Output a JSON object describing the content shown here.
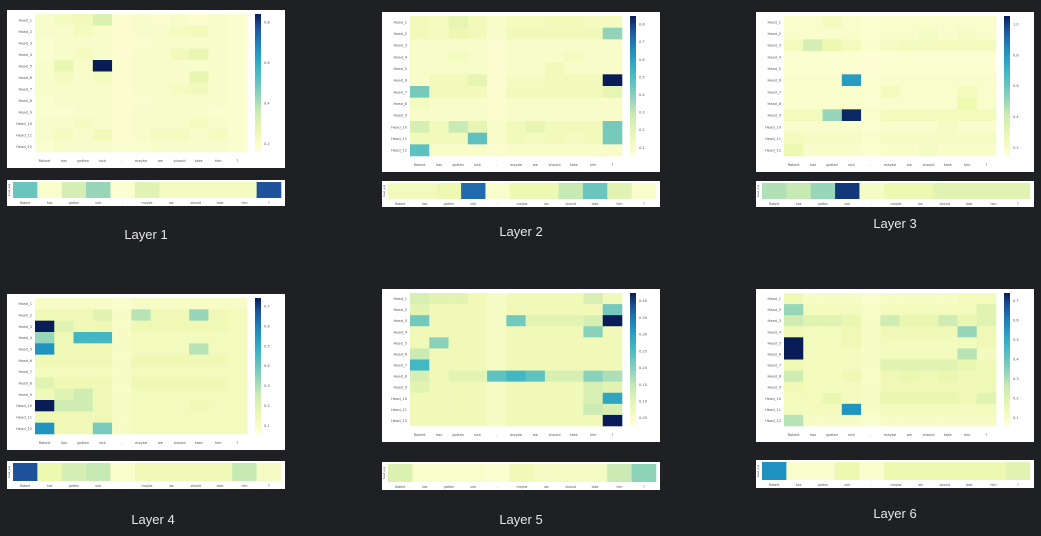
{
  "tokens": [
    "Robert",
    "has",
    "gotten",
    "sick",
    ".",
    "maybe",
    "we",
    "should",
    "take",
    "him",
    "?"
  ],
  "heads": [
    "Head_1",
    "Head_2",
    "Head_3",
    "Head_4",
    "Head_5",
    "Head_6",
    "Head_7",
    "Head_8",
    "Head_9",
    "Head_10",
    "Head_11",
    "Head_12"
  ],
  "strip_label": "head_avg",
  "colors": {
    "low": "#ffffd9",
    "mid1": "#edf8b1",
    "mid2": "#c7e9b4",
    "mid3": "#7fcdbb",
    "mid4": "#41b6c4",
    "mid5": "#1d91c0",
    "high": "#081d58",
    "background": "#1f2023",
    "caption": "#e6e6e6"
  },
  "chart_data": [
    {
      "type": "heatmap",
      "title": "Layer 1",
      "caption": "Layer 1",
      "colorbar_ticks": [
        "0.8",
        "0.6",
        "0.4",
        "0.2"
      ],
      "vmax": 0.9,
      "matrix": [
        [
          0.05,
          0.08,
          0.1,
          0.2,
          0.03,
          0.05,
          0.03,
          0.05,
          0.03,
          0.05,
          0.04
        ],
        [
          0.05,
          0.05,
          0.08,
          0.05,
          0.03,
          0.05,
          0.05,
          0.08,
          0.1,
          0.05,
          0.04
        ],
        [
          0.04,
          0.05,
          0.05,
          0.05,
          0.03,
          0.04,
          0.05,
          0.05,
          0.05,
          0.05,
          0.04
        ],
        [
          0.04,
          0.05,
          0.08,
          0.05,
          0.03,
          0.05,
          0.05,
          0.1,
          0.15,
          0.05,
          0.04
        ],
        [
          0.05,
          0.15,
          0.05,
          0.9,
          0.03,
          0.05,
          0.05,
          0.05,
          0.05,
          0.05,
          0.04
        ],
        [
          0.05,
          0.08,
          0.05,
          0.08,
          0.03,
          0.05,
          0.05,
          0.05,
          0.15,
          0.05,
          0.04
        ],
        [
          0.05,
          0.05,
          0.05,
          0.05,
          0.03,
          0.05,
          0.05,
          0.08,
          0.1,
          0.05,
          0.04
        ],
        [
          0.04,
          0.05,
          0.05,
          0.05,
          0.03,
          0.04,
          0.05,
          0.05,
          0.05,
          0.05,
          0.04
        ],
        [
          0.04,
          0.04,
          0.05,
          0.05,
          0.03,
          0.05,
          0.05,
          0.05,
          0.05,
          0.04,
          0.04
        ],
        [
          0.05,
          0.05,
          0.08,
          0.05,
          0.03,
          0.05,
          0.05,
          0.05,
          0.08,
          0.05,
          0.04
        ],
        [
          0.05,
          0.08,
          0.05,
          0.1,
          0.03,
          0.05,
          0.08,
          0.08,
          0.05,
          0.08,
          0.04
        ],
        [
          0.04,
          0.05,
          0.05,
          0.05,
          0.03,
          0.04,
          0.05,
          0.05,
          0.05,
          0.05,
          0.04
        ]
      ],
      "head_avg": [
        0.5,
        0.05,
        0.25,
        0.4,
        0.03,
        0.2,
        0.1,
        0.1,
        0.1,
        0.1,
        0.9
      ]
    },
    {
      "type": "heatmap",
      "title": "Layer 2",
      "caption": "Layer 2",
      "colorbar_ticks": [
        "0.8",
        "0.7",
        "0.6",
        "0.5",
        "0.4",
        "0.3",
        "0.2",
        "0.1"
      ],
      "vmax": 0.85,
      "matrix": [
        [
          0.1,
          0.08,
          0.15,
          0.1,
          0.05,
          0.08,
          0.08,
          0.1,
          0.1,
          0.08,
          0.08
        ],
        [
          0.1,
          0.08,
          0.12,
          0.1,
          0.05,
          0.1,
          0.1,
          0.1,
          0.1,
          0.1,
          0.35
        ],
        [
          0.05,
          0.05,
          0.05,
          0.05,
          0.03,
          0.05,
          0.05,
          0.05,
          0.05,
          0.05,
          0.05
        ],
        [
          0.05,
          0.05,
          0.08,
          0.05,
          0.03,
          0.05,
          0.05,
          0.05,
          0.08,
          0.05,
          0.05
        ],
        [
          0.05,
          0.05,
          0.05,
          0.05,
          0.03,
          0.05,
          0.05,
          0.1,
          0.05,
          0.05,
          0.05
        ],
        [
          0.05,
          0.1,
          0.1,
          0.15,
          0.03,
          0.08,
          0.08,
          0.1,
          0.1,
          0.1,
          0.85
        ],
        [
          0.4,
          0.1,
          0.1,
          0.1,
          0.03,
          0.1,
          0.1,
          0.1,
          0.1,
          0.1,
          0.15
        ],
        [
          0.08,
          0.05,
          0.05,
          0.05,
          0.03,
          0.05,
          0.05,
          0.05,
          0.05,
          0.05,
          0.05
        ],
        [
          0.05,
          0.05,
          0.05,
          0.05,
          0.03,
          0.05,
          0.05,
          0.05,
          0.05,
          0.05,
          0.05
        ],
        [
          0.2,
          0.1,
          0.25,
          0.15,
          0.05,
          0.1,
          0.15,
          0.1,
          0.1,
          0.1,
          0.4
        ],
        [
          0.1,
          0.1,
          0.1,
          0.45,
          0.05,
          0.1,
          0.08,
          0.1,
          0.08,
          0.1,
          0.4
        ],
        [
          0.45,
          0.05,
          0.05,
          0.05,
          0.03,
          0.05,
          0.05,
          0.05,
          0.05,
          0.05,
          0.05
        ]
      ],
      "head_avg": [
        0.1,
        0.1,
        0.15,
        0.85,
        0.05,
        0.15,
        0.15,
        0.3,
        0.5,
        0.2,
        0.05
      ]
    },
    {
      "type": "heatmap",
      "title": "Layer 3",
      "caption": "Layer 3",
      "colorbar_ticks": [
        "1.0",
        "0.8",
        "0.6",
        "0.4",
        "0.2"
      ],
      "vmax": 1.0,
      "matrix": [
        [
          0.05,
          0.05,
          0.1,
          0.05,
          0.03,
          0.05,
          0.05,
          0.05,
          0.05,
          0.05,
          0.05
        ],
        [
          0.05,
          0.05,
          0.05,
          0.05,
          0.03,
          0.05,
          0.05,
          0.08,
          0.05,
          0.08,
          0.05
        ],
        [
          0.1,
          0.25,
          0.15,
          0.1,
          0.05,
          0.08,
          0.1,
          0.1,
          0.1,
          0.1,
          0.1
        ],
        [
          0.03,
          0.03,
          0.03,
          0.03,
          0.02,
          0.03,
          0.03,
          0.03,
          0.03,
          0.03,
          0.03
        ],
        [
          0.03,
          0.03,
          0.03,
          0.03,
          0.02,
          0.03,
          0.03,
          0.03,
          0.03,
          0.03,
          0.03
        ],
        [
          0.05,
          0.05,
          0.05,
          0.7,
          0.03,
          0.05,
          0.05,
          0.05,
          0.05,
          0.05,
          0.05
        ],
        [
          0.05,
          0.05,
          0.05,
          0.05,
          0.03,
          0.1,
          0.05,
          0.05,
          0.05,
          0.1,
          0.05
        ],
        [
          0.05,
          0.05,
          0.05,
          0.05,
          0.03,
          0.05,
          0.05,
          0.05,
          0.05,
          0.15,
          0.05
        ],
        [
          0.1,
          0.1,
          0.4,
          0.98,
          0.05,
          0.1,
          0.1,
          0.1,
          0.1,
          0.1,
          0.1
        ],
        [
          0.05,
          0.05,
          0.05,
          0.05,
          0.03,
          0.05,
          0.05,
          0.05,
          0.08,
          0.05,
          0.05
        ],
        [
          0.1,
          0.08,
          0.08,
          0.08,
          0.05,
          0.08,
          0.08,
          0.08,
          0.08,
          0.08,
          0.08
        ],
        [
          0.15,
          0.05,
          0.05,
          0.05,
          0.03,
          0.05,
          0.05,
          0.08,
          0.05,
          0.05,
          0.05
        ]
      ],
      "head_avg": [
        0.35,
        0.3,
        0.4,
        0.95,
        0.08,
        0.15,
        0.15,
        0.2,
        0.2,
        0.2,
        0.2
      ]
    },
    {
      "type": "heatmap",
      "title": "Layer 4",
      "caption": "Layer 4",
      "colorbar_ticks": [
        "0.7",
        "0.6",
        "0.5",
        "0.4",
        "0.3",
        "0.2",
        "0.1"
      ],
      "vmax": 0.75,
      "matrix": [
        [
          0.05,
          0.05,
          0.05,
          0.05,
          0.03,
          0.05,
          0.05,
          0.05,
          0.05,
          0.05,
          0.05
        ],
        [
          0.1,
          0.1,
          0.1,
          0.15,
          0.05,
          0.25,
          0.1,
          0.1,
          0.3,
          0.1,
          0.08
        ],
        [
          0.75,
          0.15,
          0.1,
          0.1,
          0.05,
          0.1,
          0.1,
          0.1,
          0.1,
          0.1,
          0.08
        ],
        [
          0.3,
          0.1,
          0.45,
          0.45,
          0.05,
          0.08,
          0.08,
          0.08,
          0.08,
          0.08,
          0.08
        ],
        [
          0.55,
          0.1,
          0.1,
          0.1,
          0.05,
          0.08,
          0.08,
          0.08,
          0.25,
          0.08,
          0.08
        ],
        [
          0.1,
          0.1,
          0.1,
          0.1,
          0.05,
          0.1,
          0.1,
          0.1,
          0.1,
          0.1,
          0.08
        ],
        [
          0.08,
          0.08,
          0.08,
          0.08,
          0.05,
          0.08,
          0.08,
          0.08,
          0.08,
          0.08,
          0.08
        ],
        [
          0.15,
          0.1,
          0.1,
          0.1,
          0.05,
          0.1,
          0.1,
          0.1,
          0.1,
          0.1,
          0.08
        ],
        [
          0.1,
          0.15,
          0.2,
          0.1,
          0.05,
          0.08,
          0.08,
          0.08,
          0.08,
          0.08,
          0.08
        ],
        [
          0.75,
          0.2,
          0.2,
          0.1,
          0.05,
          0.08,
          0.08,
          0.08,
          0.1,
          0.08,
          0.08
        ],
        [
          0.1,
          0.1,
          0.1,
          0.1,
          0.05,
          0.08,
          0.08,
          0.08,
          0.08,
          0.08,
          0.08
        ],
        [
          0.55,
          0.1,
          0.1,
          0.35,
          0.05,
          0.08,
          0.08,
          0.08,
          0.08,
          0.08,
          0.08
        ]
      ],
      "head_avg": [
        0.9,
        0.15,
        0.25,
        0.3,
        0.05,
        0.12,
        0.12,
        0.12,
        0.12,
        0.3,
        0.08
      ]
    },
    {
      "type": "heatmap",
      "title": "Layer 5",
      "caption": "Layer 5",
      "colorbar_ticks": [
        "0.40",
        "0.35",
        "0.30",
        "0.25",
        "0.20",
        "0.15",
        "0.10",
        "0.05"
      ],
      "vmax": 0.42,
      "matrix": [
        [
          0.1,
          0.08,
          0.08,
          0.05,
          0.03,
          0.05,
          0.05,
          0.05,
          0.05,
          0.1,
          0.05
        ],
        [
          0.08,
          0.05,
          0.05,
          0.05,
          0.03,
          0.05,
          0.05,
          0.05,
          0.05,
          0.05,
          0.2
        ],
        [
          0.2,
          0.05,
          0.05,
          0.05,
          0.03,
          0.2,
          0.08,
          0.08,
          0.08,
          0.1,
          0.42
        ],
        [
          0.05,
          0.05,
          0.05,
          0.05,
          0.03,
          0.05,
          0.05,
          0.05,
          0.05,
          0.18,
          0.05
        ],
        [
          0.05,
          0.18,
          0.05,
          0.05,
          0.03,
          0.05,
          0.05,
          0.05,
          0.05,
          0.05,
          0.05
        ],
        [
          0.12,
          0.05,
          0.05,
          0.05,
          0.03,
          0.05,
          0.05,
          0.05,
          0.05,
          0.05,
          0.05
        ],
        [
          0.25,
          0.05,
          0.05,
          0.05,
          0.03,
          0.05,
          0.05,
          0.05,
          0.05,
          0.05,
          0.05
        ],
        [
          0.1,
          0.05,
          0.08,
          0.08,
          0.22,
          0.25,
          0.22,
          0.1,
          0.1,
          0.18,
          0.15
        ],
        [
          0.08,
          0.05,
          0.05,
          0.05,
          0.03,
          0.05,
          0.05,
          0.05,
          0.05,
          0.1,
          0.08
        ],
        [
          0.05,
          0.05,
          0.05,
          0.05,
          0.03,
          0.05,
          0.05,
          0.05,
          0.05,
          0.1,
          0.28
        ],
        [
          0.05,
          0.05,
          0.05,
          0.05,
          0.03,
          0.05,
          0.05,
          0.05,
          0.05,
          0.12,
          0.1
        ],
        [
          0.05,
          0.05,
          0.05,
          0.05,
          0.03,
          0.05,
          0.05,
          0.05,
          0.05,
          0.05,
          0.42
        ]
      ],
      "head_avg": [
        0.22,
        0.05,
        0.05,
        0.05,
        0.03,
        0.12,
        0.08,
        0.08,
        0.08,
        0.28,
        0.42
      ]
    },
    {
      "type": "heatmap",
      "title": "Layer 6",
      "caption": "Layer 6",
      "colorbar_ticks": [
        "0.7",
        "0.6",
        "0.5",
        "0.4",
        "0.3",
        "0.2",
        "0.1"
      ],
      "vmax": 0.75,
      "matrix": [
        [
          0.1,
          0.05,
          0.05,
          0.05,
          0.03,
          0.05,
          0.05,
          0.05,
          0.05,
          0.08,
          0.08
        ],
        [
          0.3,
          0.08,
          0.08,
          0.08,
          0.05,
          0.08,
          0.08,
          0.08,
          0.08,
          0.08,
          0.15
        ],
        [
          0.2,
          0.15,
          0.15,
          0.12,
          0.05,
          0.2,
          0.12,
          0.12,
          0.2,
          0.12,
          0.15
        ],
        [
          0.1,
          0.08,
          0.08,
          0.1,
          0.05,
          0.1,
          0.1,
          0.1,
          0.1,
          0.3,
          0.1
        ],
        [
          0.75,
          0.08,
          0.08,
          0.1,
          0.05,
          0.08,
          0.08,
          0.08,
          0.08,
          0.08,
          0.1
        ],
        [
          0.75,
          0.08,
          0.08,
          0.08,
          0.05,
          0.08,
          0.08,
          0.08,
          0.08,
          0.25,
          0.08
        ],
        [
          0.1,
          0.08,
          0.08,
          0.08,
          0.05,
          0.15,
          0.15,
          0.15,
          0.15,
          0.12,
          0.1
        ],
        [
          0.2,
          0.08,
          0.08,
          0.1,
          0.05,
          0.1,
          0.12,
          0.1,
          0.12,
          0.1,
          0.1
        ],
        [
          0.1,
          0.08,
          0.08,
          0.08,
          0.05,
          0.1,
          0.1,
          0.1,
          0.1,
          0.1,
          0.1
        ],
        [
          0.08,
          0.08,
          0.12,
          0.08,
          0.05,
          0.12,
          0.12,
          0.12,
          0.12,
          0.1,
          0.15
        ],
        [
          0.08,
          0.08,
          0.08,
          0.55,
          0.05,
          0.08,
          0.08,
          0.08,
          0.08,
          0.08,
          0.08
        ],
        [
          0.25,
          0.05,
          0.05,
          0.05,
          0.03,
          0.05,
          0.05,
          0.05,
          0.05,
          0.05,
          0.05
        ]
      ],
      "head_avg": [
        0.75,
        0.05,
        0.05,
        0.15,
        0.05,
        0.15,
        0.15,
        0.15,
        0.15,
        0.15,
        0.2
      ]
    }
  ]
}
